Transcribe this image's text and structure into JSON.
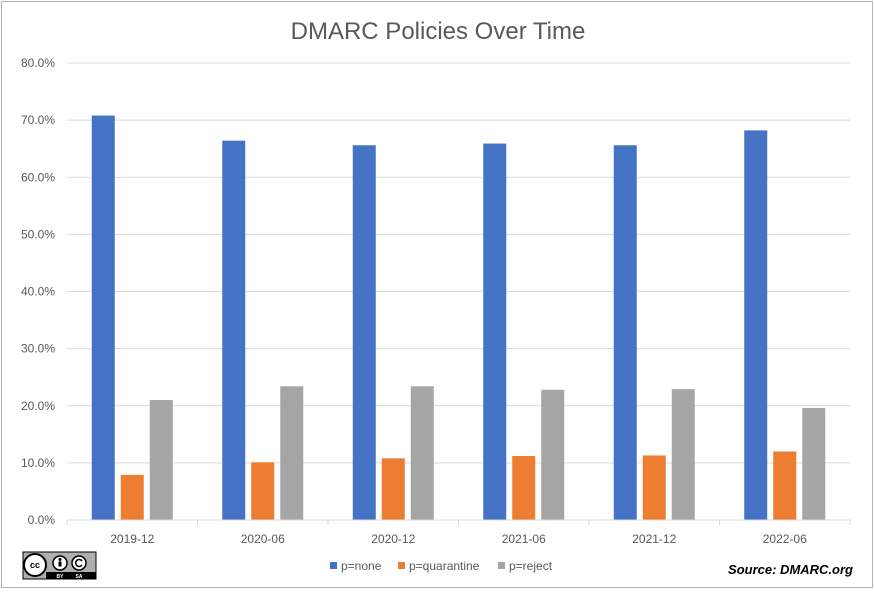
{
  "chart_data": {
    "type": "bar",
    "title": "DMARC Policies Over Time",
    "xlabel": "",
    "ylabel": "",
    "categories": [
      "2019-12",
      "2020-06",
      "2020-12",
      "2021-06",
      "2021-12",
      "2022-06"
    ],
    "series": [
      {
        "name": "p=none",
        "color": "#4472c4",
        "values": [
          70.8,
          66.4,
          65.6,
          65.9,
          65.6,
          68.2
        ]
      },
      {
        "name": "p=quarantine",
        "color": "#ed7d31",
        "values": [
          7.9,
          10.1,
          10.8,
          11.2,
          11.3,
          12.0
        ]
      },
      {
        "name": "p=reject",
        "color": "#a5a5a5",
        "values": [
          21.0,
          23.4,
          23.4,
          22.8,
          22.9,
          19.6
        ]
      }
    ],
    "ylim": [
      0,
      80
    ],
    "yticks": [
      0,
      10,
      20,
      30,
      40,
      50,
      60,
      70,
      80
    ],
    "ytick_labels": [
      "0.0%",
      "10.0%",
      "20.0%",
      "30.0%",
      "40.0%",
      "50.0%",
      "60.0%",
      "70.0%",
      "80.0%"
    ],
    "grid": true,
    "legend_position": "bottom-center"
  },
  "footer": {
    "source_text": "Source: DMARC.org",
    "license_badge": {
      "icon": "cc-by-sa-icon",
      "cc_label": "cc",
      "by_label": "BY",
      "sa_label": "SA"
    }
  }
}
